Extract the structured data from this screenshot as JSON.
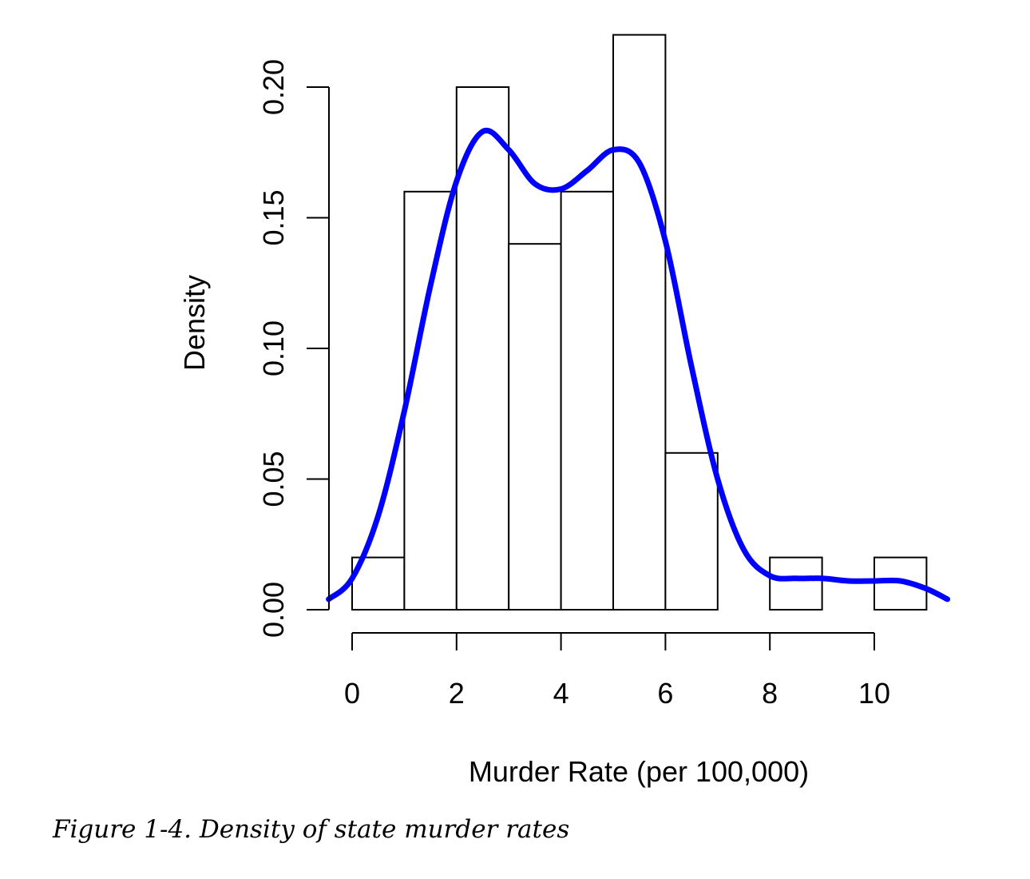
{
  "caption": "Figure 1-4. Density of state murder rates",
  "chart_data": {
    "type": "bar",
    "histogram": true,
    "xlabel": "Murder Rate (per 100,000)",
    "ylabel": "Density",
    "xlim": [
      -0.45,
      11.4
    ],
    "ylim": [
      0,
      0.22
    ],
    "x_ticks": [
      0,
      2,
      4,
      6,
      8,
      10
    ],
    "x_tick_labels": [
      "0",
      "2",
      "4",
      "6",
      "8",
      "10"
    ],
    "y_ticks": [
      0,
      0.05,
      0.1,
      0.15,
      0.2
    ],
    "y_tick_labels": [
      "0.00",
      "0.05",
      "0.10",
      "0.15",
      "0.20"
    ],
    "bins": [
      {
        "start": 0,
        "end": 1,
        "density": 0.02
      },
      {
        "start": 1,
        "end": 2,
        "density": 0.16
      },
      {
        "start": 2,
        "end": 3,
        "density": 0.2
      },
      {
        "start": 3,
        "end": 4,
        "density": 0.14
      },
      {
        "start": 4,
        "end": 5,
        "density": 0.16
      },
      {
        "start": 5,
        "end": 6,
        "density": 0.22
      },
      {
        "start": 6,
        "end": 7,
        "density": 0.06
      },
      {
        "start": 7,
        "end": 8,
        "density": 0.0
      },
      {
        "start": 8,
        "end": 9,
        "density": 0.02
      },
      {
        "start": 9,
        "end": 10,
        "density": 0.0
      },
      {
        "start": 10,
        "end": 11,
        "density": 0.02
      }
    ],
    "density_curve": {
      "color": "#0000ff",
      "x": [
        -0.45,
        0,
        0.5,
        1.0,
        1.5,
        2.0,
        2.5,
        3.0,
        3.5,
        4.0,
        4.5,
        5.0,
        5.5,
        6.0,
        6.5,
        7.0,
        7.5,
        8.0,
        8.5,
        9.0,
        9.5,
        10.0,
        10.5,
        11.0,
        11.4
      ],
      "y": [
        0.004,
        0.012,
        0.036,
        0.076,
        0.124,
        0.164,
        0.183,
        0.176,
        0.163,
        0.161,
        0.168,
        0.176,
        0.171,
        0.141,
        0.093,
        0.05,
        0.023,
        0.013,
        0.012,
        0.012,
        0.011,
        0.011,
        0.011,
        0.008,
        0.004
      ]
    }
  }
}
